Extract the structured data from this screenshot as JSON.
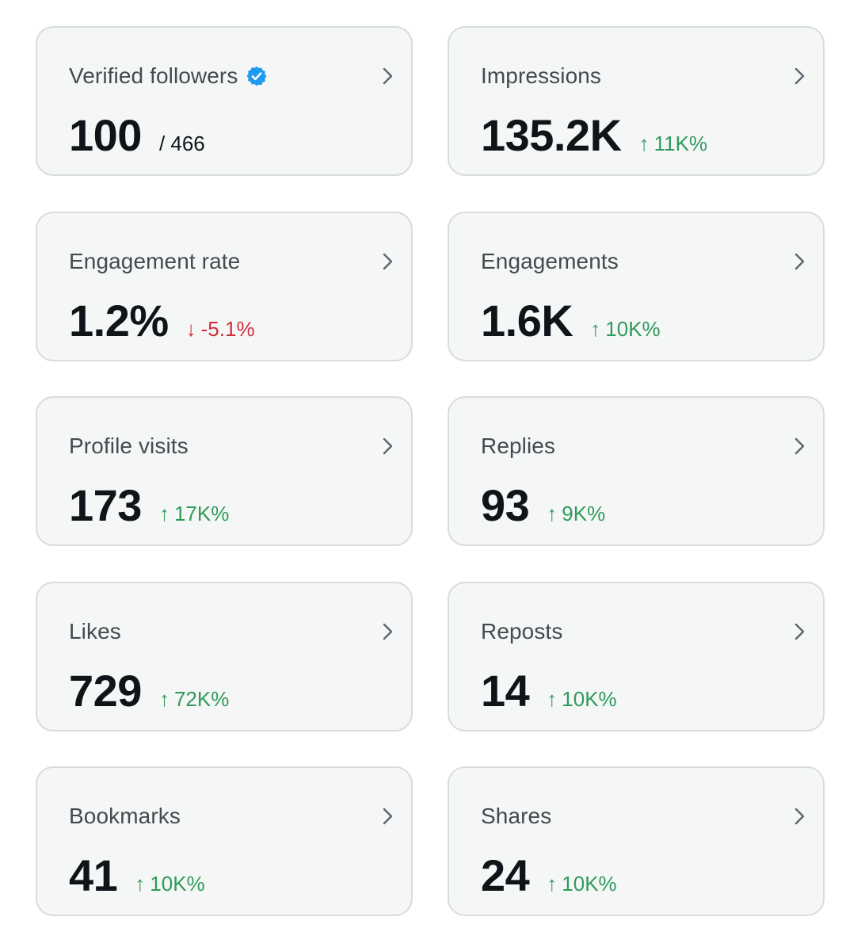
{
  "colors": {
    "positive": "#2f9a5c",
    "negative": "#d0303b",
    "verified_badge": "#1d9bf0"
  },
  "cards": [
    {
      "label": "Verified followers",
      "value": "100",
      "total": "/ 466"
    },
    {
      "label": "Impressions",
      "value": "135.2K",
      "arrow": "↑",
      "delta": "11K%"
    },
    {
      "label": "Engagement rate",
      "value": "1.2%",
      "arrow": "↓",
      "delta": "-5.1%"
    },
    {
      "label": "Engagements",
      "value": "1.6K",
      "arrow": "↑",
      "delta": "10K%"
    },
    {
      "label": "Profile visits",
      "value": "173",
      "arrow": "↑",
      "delta": "17K%"
    },
    {
      "label": "Replies",
      "value": "93",
      "arrow": "↑",
      "delta": "9K%"
    },
    {
      "label": "Likes",
      "value": "729",
      "arrow": "↑",
      "delta": "72K%"
    },
    {
      "label": "Reposts",
      "value": "14",
      "arrow": "↑",
      "delta": "10K%"
    },
    {
      "label": "Bookmarks",
      "value": "41",
      "arrow": "↑",
      "delta": "10K%"
    },
    {
      "label": "Shares",
      "value": "24",
      "arrow": "↑",
      "delta": "10K%"
    }
  ]
}
